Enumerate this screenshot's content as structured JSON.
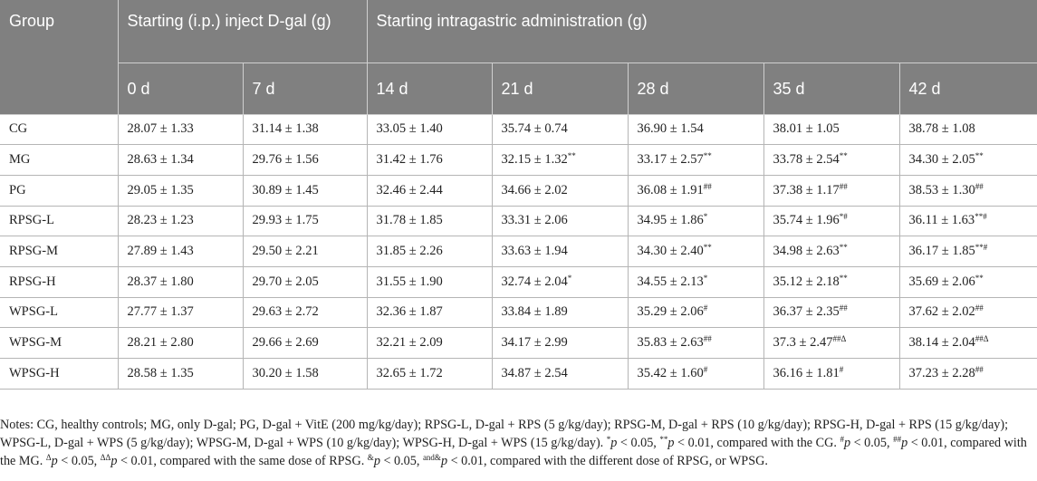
{
  "header": {
    "group": "Group",
    "ip": "Starting (i.p.) inject D-gal (g)",
    "ig": "Starting intragastric administration (g)",
    "days": [
      "0 d",
      "7 d",
      "14 d",
      "21 d",
      "28 d",
      "35 d",
      "42 d"
    ]
  },
  "rows": [
    {
      "group": "CG",
      "cells": [
        [
          "28.07 ± 1.33",
          ""
        ],
        [
          "31.14 ± 1.38",
          ""
        ],
        [
          "33.05 ± 1.40",
          ""
        ],
        [
          "35.74 ± 0.74",
          ""
        ],
        [
          "36.90 ± 1.54",
          ""
        ],
        [
          "38.01 ± 1.05",
          ""
        ],
        [
          "38.78 ± 1.08",
          ""
        ]
      ]
    },
    {
      "group": "MG",
      "cells": [
        [
          "28.63 ± 1.34",
          ""
        ],
        [
          "29.76 ± 1.56",
          ""
        ],
        [
          "31.42 ± 1.76",
          ""
        ],
        [
          "32.15 ± 1.32",
          "**"
        ],
        [
          "33.17 ± 2.57",
          "**"
        ],
        [
          "33.78 ± 2.54",
          "**"
        ],
        [
          "34.30 ± 2.05",
          "**"
        ]
      ]
    },
    {
      "group": "PG",
      "cells": [
        [
          "29.05 ± 1.35",
          ""
        ],
        [
          "30.89 ± 1.45",
          ""
        ],
        [
          "32.46 ± 2.44",
          ""
        ],
        [
          "34.66 ± 2.02",
          ""
        ],
        [
          "36.08 ± 1.91",
          "##"
        ],
        [
          "37.38 ± 1.17",
          "##"
        ],
        [
          "38.53 ± 1.30",
          "##"
        ]
      ]
    },
    {
      "group": "RPSG-L",
      "cells": [
        [
          "28.23 ± 1.23",
          ""
        ],
        [
          "29.93 ± 1.75",
          ""
        ],
        [
          "31.78 ± 1.85",
          ""
        ],
        [
          "33.31 ± 2.06",
          ""
        ],
        [
          "34.95 ± 1.86",
          "*"
        ],
        [
          "35.74 ± 1.96",
          "*#"
        ],
        [
          "36.11 ± 1.63",
          "**#"
        ]
      ]
    },
    {
      "group": "RPSG-M",
      "cells": [
        [
          "27.89 ± 1.43",
          ""
        ],
        [
          "29.50 ± 2.21",
          ""
        ],
        [
          "31.85 ± 2.26",
          ""
        ],
        [
          "33.63 ± 1.94",
          ""
        ],
        [
          "34.30 ± 2.40",
          "**"
        ],
        [
          "34.98 ± 2.63",
          "**"
        ],
        [
          "36.17 ± 1.85",
          "**#"
        ]
      ]
    },
    {
      "group": "RPSG-H",
      "cells": [
        [
          "28.37 ± 1.80",
          ""
        ],
        [
          "29.70 ± 2.05",
          ""
        ],
        [
          "31.55 ± 1.90",
          ""
        ],
        [
          "32.74 ± 2.04",
          "*"
        ],
        [
          "34.55 ± 2.13",
          "*"
        ],
        [
          "35.12 ± 2.18",
          "**"
        ],
        [
          "35.69 ± 2.06",
          "**"
        ]
      ]
    },
    {
      "group": "WPSG-L",
      "cells": [
        [
          "27.77 ± 1.37",
          ""
        ],
        [
          "29.63 ± 2.72",
          ""
        ],
        [
          "32.36 ± 1.87",
          ""
        ],
        [
          "33.84 ± 1.89",
          ""
        ],
        [
          "35.29 ± 2.06",
          "#"
        ],
        [
          "36.37 ± 2.35",
          "##"
        ],
        [
          "37.62 ± 2.02",
          "##"
        ]
      ]
    },
    {
      "group": "WPSG-M",
      "cells": [
        [
          "28.21 ± 2.80",
          ""
        ],
        [
          "29.66 ± 2.69",
          ""
        ],
        [
          "32.21 ± 2.09",
          ""
        ],
        [
          "34.17 ± 2.99",
          ""
        ],
        [
          "35.83 ± 2.63",
          "##"
        ],
        [
          "37.3 ± 2.47",
          "##Δ"
        ],
        [
          "38.14 ± 2.04",
          "##Δ"
        ]
      ]
    },
    {
      "group": "WPSG-H",
      "cells": [
        [
          "28.58 ± 1.35",
          ""
        ],
        [
          "30.20 ± 1.58",
          ""
        ],
        [
          "32.65 ± 1.72",
          ""
        ],
        [
          "34.87 ± 2.54",
          ""
        ],
        [
          "35.42 ± 1.60",
          "#"
        ],
        [
          "36.16 ± 1.81",
          "#"
        ],
        [
          "37.23 ± 2.28",
          "##"
        ]
      ]
    }
  ],
  "notes": {
    "abbrev": "Notes: CG, healthy controls; MG, only D-gal; PG, D-gal + VitE (200 mg/kg/day); RPSG-L, D-gal + RPS (5 g/kg/day); RPSG-M, D-gal + RPS (10 g/kg/day); RPSG-H, D-gal + RPS (15 g/kg/day); WPSG-L, D-gal + WPS (5 g/kg/day); WPSG-M, D-gal + WPS (10 g/kg/day); WPSG-H, D-gal + WPS (15 g/kg/day).",
    "sig": [
      {
        "sup": "*",
        "text": "p < 0.05, "
      },
      {
        "sup": "**",
        "text": "p < 0.01, compared with the CG. "
      },
      {
        "sup": "#",
        "text": "p < 0.05, "
      },
      {
        "sup": "##",
        "text": "p < 0.01, compared with the MG. "
      },
      {
        "sup": "Δ",
        "text": "p < 0.05, "
      },
      {
        "sup": "ΔΔ",
        "text": "p < 0.01, compared with the same dose of RPSG. "
      },
      {
        "sup": "&",
        "text": "p < 0.05, "
      },
      {
        "sup": "and&",
        "text": "p < 0.01, compared with the different dose of RPSG, or WPSG."
      }
    ]
  }
}
